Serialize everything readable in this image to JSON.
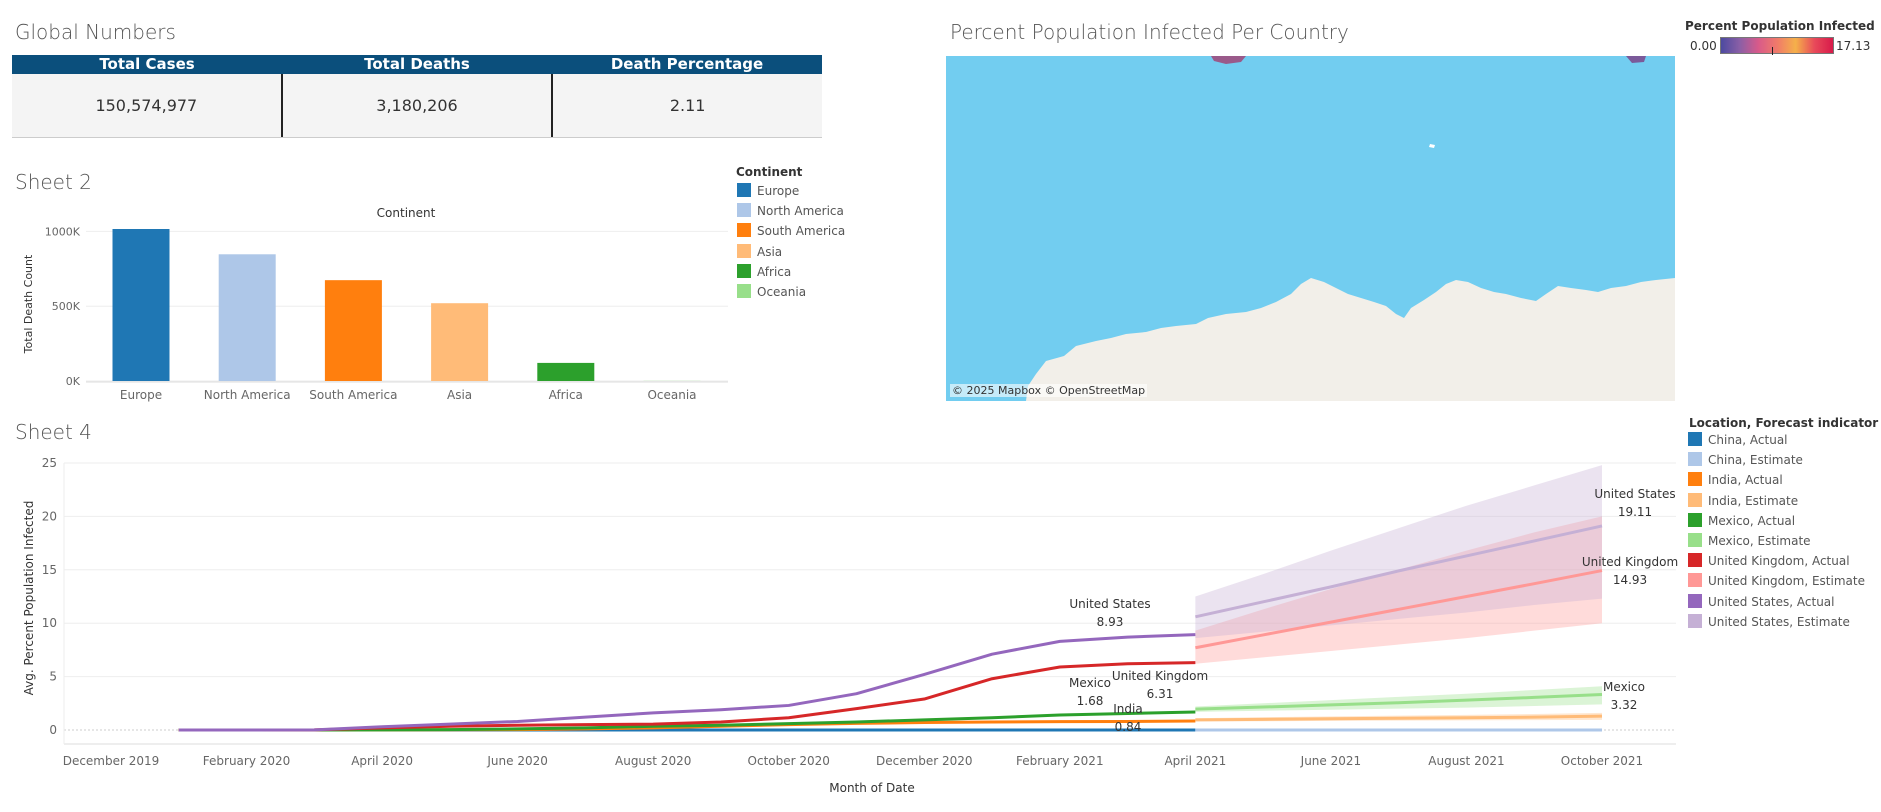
{
  "global_numbers": {
    "title": "Global Numbers",
    "headers": [
      "Total Cases",
      "Total Deaths",
      "Death Percentage"
    ],
    "values": [
      "150,574,977",
      "3,180,206",
      "2.11"
    ]
  },
  "map_panel": {
    "title": "Percent Population Infected Per Country",
    "attribution": "© 2025 Mapbox © OpenStreetMap",
    "legend_title": "Percent Population Infected",
    "legend_min": "0.00",
    "legend_max": "17.13",
    "colors": {
      "ocean": "#72cdf0",
      "land": "#f2efe9"
    }
  },
  "sheet2": {
    "title": "Sheet 2",
    "legend_title": "Continent",
    "legend": [
      {
        "label": "Europe",
        "color": "#1f77b4"
      },
      {
        "label": "North America",
        "color": "#aec7e8"
      },
      {
        "label": "South America",
        "color": "#ff7f0e"
      },
      {
        "label": "Asia",
        "color": "#ffbb78"
      },
      {
        "label": "Africa",
        "color": "#2ca02c"
      },
      {
        "label": "Oceania",
        "color": "#98df8a"
      }
    ],
    "chart_data": {
      "type": "bar",
      "title": "Continent",
      "ylabel": "Total Death Count",
      "categories": [
        "Europe",
        "North America",
        "South America",
        "Asia",
        "Africa",
        "Oceania"
      ],
      "values": [
        1016000,
        847000,
        674000,
        520000,
        121000,
        1000
      ],
      "ylim": [
        0,
        1016000
      ],
      "yticks": [
        {
          "value": 0,
          "label": "0K"
        },
        {
          "value": 500000,
          "label": "500K"
        },
        {
          "value": 1000000,
          "label": "1000K"
        }
      ],
      "colors": [
        "#1f77b4",
        "#aec7e8",
        "#ff7f0e",
        "#ffbb78",
        "#2ca02c",
        "#98df8a"
      ],
      "grid": true
    }
  },
  "sheet4": {
    "title": "Sheet 4",
    "legend_title": "Location, Forecast indicator",
    "chart_data": {
      "type": "line",
      "xlabel": "Month of Date",
      "ylabel": "Avg. Percent Population Infected",
      "ylim": [
        0,
        25
      ],
      "yticks": [
        0,
        5,
        10,
        15,
        20,
        25
      ],
      "xlim": [
        "2019-12",
        "2021-11"
      ],
      "xticks": [
        "December 2019",
        "February 2020",
        "April 2020",
        "June 2020",
        "August 2020",
        "October 2020",
        "December 2020",
        "February 2021",
        "April 2021",
        "June 2021",
        "August 2021",
        "October 2021"
      ],
      "x_actual": [
        "2020-01",
        "2020-02",
        "2020-03",
        "2020-04",
        "2020-05",
        "2020-06",
        "2020-07",
        "2020-08",
        "2020-09",
        "2020-10",
        "2020-11",
        "2020-12",
        "2021-01",
        "2021-02",
        "2021-03",
        "2021-04"
      ],
      "x_estimate": [
        "2021-04",
        "2021-05",
        "2021-06",
        "2021-07",
        "2021-08",
        "2021-09",
        "2021-10"
      ],
      "series": [
        {
          "name": "China, Actual",
          "color": "#1f77b4",
          "values": [
            0,
            0,
            0,
            0,
            0,
            0,
            0,
            0,
            0,
            0,
            0,
            0,
            0,
            0,
            0,
            0
          ]
        },
        {
          "name": "China, Estimate",
          "color": "#aec7e8",
          "values": [
            0,
            0,
            0,
            0,
            0,
            0,
            0
          ]
        },
        {
          "name": "India, Actual",
          "color": "#ff7f0e",
          "values": [
            0,
            0,
            0,
            0.01,
            0.02,
            0.04,
            0.1,
            0.2,
            0.35,
            0.5,
            0.62,
            0.7,
            0.75,
            0.78,
            0.8,
            0.84
          ]
        },
        {
          "name": "India, Estimate",
          "color": "#ffbb78",
          "values": [
            0.95,
            1.0,
            1.05,
            1.1,
            1.15,
            1.2,
            1.3
          ],
          "band": [
            [
              0.8,
              1.1
            ],
            [
              0.82,
              1.2
            ],
            [
              0.85,
              1.28
            ],
            [
              0.88,
              1.35
            ],
            [
              0.9,
              1.42
            ],
            [
              0.93,
              1.5
            ],
            [
              0.95,
              1.6
            ]
          ]
        },
        {
          "name": "Mexico, Actual",
          "color": "#2ca02c",
          "values": [
            0,
            0,
            0,
            0.01,
            0.04,
            0.1,
            0.2,
            0.35,
            0.45,
            0.6,
            0.75,
            0.95,
            1.15,
            1.4,
            1.55,
            1.68
          ]
        },
        {
          "name": "Mexico, Estimate",
          "color": "#98df8a",
          "values": [
            1.95,
            2.15,
            2.35,
            2.55,
            2.8,
            3.05,
            3.32
          ],
          "band": [
            [
              1.7,
              2.2
            ],
            [
              1.8,
              2.5
            ],
            [
              1.9,
              2.8
            ],
            [
              2.0,
              3.1
            ],
            [
              2.1,
              3.4
            ],
            [
              2.25,
              3.75
            ],
            [
              2.4,
              4.1
            ]
          ]
        },
        {
          "name": "United Kingdom, Actual",
          "color": "#d62728",
          "values": [
            0,
            0,
            0.01,
            0.2,
            0.35,
            0.45,
            0.5,
            0.55,
            0.75,
            1.15,
            2.0,
            2.9,
            4.8,
            5.9,
            6.2,
            6.31
          ]
        },
        {
          "name": "United Kingdom, Estimate",
          "color": "#ff9896",
          "values": [
            7.7,
            8.9,
            10.1,
            11.3,
            12.5,
            13.7,
            14.93
          ],
          "band": [
            [
              6.2,
              9.3
            ],
            [
              6.8,
              11.3
            ],
            [
              7.4,
              13.2
            ],
            [
              8.0,
              15.0
            ],
            [
              8.6,
              16.8
            ],
            [
              9.3,
              18.5
            ],
            [
              10.0,
              20.0
            ]
          ]
        },
        {
          "name": "United States, Actual",
          "color": "#9467bd",
          "values": [
            0,
            0,
            0.01,
            0.3,
            0.55,
            0.8,
            1.2,
            1.6,
            1.9,
            2.3,
            3.4,
            5.2,
            7.1,
            8.3,
            8.7,
            8.93
          ]
        },
        {
          "name": "United States, Estimate",
          "color": "#c5b0d5",
          "values": [
            10.6,
            12.0,
            13.4,
            14.9,
            16.3,
            17.7,
            19.11
          ],
          "band": [
            [
              8.6,
              12.5
            ],
            [
              9.2,
              14.6
            ],
            [
              9.8,
              16.8
            ],
            [
              10.4,
              18.9
            ],
            [
              11.0,
              21.0
            ],
            [
              11.7,
              22.9
            ],
            [
              12.3,
              24.8
            ]
          ]
        }
      ],
      "annotations": [
        {
          "name": "United States",
          "value": "8.93"
        },
        {
          "name": "United Kingdom",
          "value": "6.31"
        },
        {
          "name": "Mexico",
          "value": "1.68"
        },
        {
          "name": "India",
          "value": "0.84"
        },
        {
          "name": "United States",
          "value": "19.11"
        },
        {
          "name": "United Kingdom",
          "value": "14.93"
        },
        {
          "name": "Mexico",
          "value": "3.32"
        }
      ],
      "grid": true
    }
  }
}
